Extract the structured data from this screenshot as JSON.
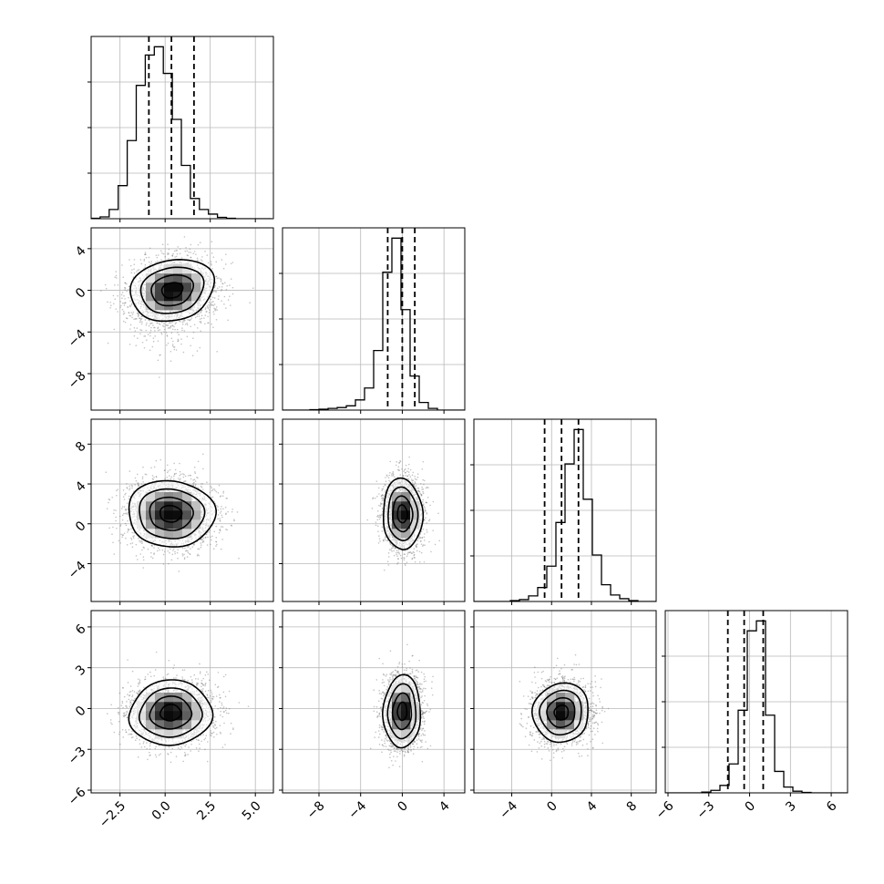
{
  "chart_data": {
    "type": "corner",
    "colors": {
      "ink": "#000000",
      "grid": "#b8b8b8",
      "background": "#ffffff"
    },
    "parameters": [
      {
        "range": [
          -4.1,
          6.0
        ],
        "ticks": [
          -2.5,
          0.0,
          2.5,
          5.0
        ],
        "tick_labels": [
          "−2.5",
          "0.0",
          "2.5",
          "5.0"
        ],
        "quantiles": [
          -0.9,
          0.35,
          1.6
        ]
      },
      {
        "range": [
          -11.5,
          6.0
        ],
        "ticks": [
          -8,
          -4,
          0,
          4
        ],
        "tick_labels": [
          "−8",
          "−4",
          "0",
          "4"
        ],
        "quantiles": [
          -1.4,
          0.0,
          1.2
        ]
      },
      {
        "range": [
          -7.8,
          10.5
        ],
        "ticks": [
          -4,
          0,
          4,
          8
        ],
        "tick_labels": [
          "−4",
          "0",
          "4",
          "8"
        ],
        "quantiles": [
          -0.7,
          1.0,
          2.7
        ]
      },
      {
        "range": [
          -6.2,
          7.2
        ],
        "ticks": [
          -6,
          -3,
          0,
          3,
          6
        ],
        "tick_labels": [
          "−6",
          "−3",
          "0",
          "3",
          "6"
        ],
        "quantiles": [
          -1.6,
          -0.4,
          1.0
        ]
      }
    ],
    "histograms": [
      {
        "param": 0,
        "start": -4.1,
        "bin_width": 0.5,
        "counts": [
          0.5,
          2,
          10,
          36,
          85,
          145,
          178,
          187,
          158,
          108,
          58,
          22,
          10,
          5,
          1.5,
          0.5,
          0,
          0,
          0,
          0
        ]
      },
      {
        "param": 1,
        "start": -11.5,
        "bin_width": 0.875,
        "counts": [
          0,
          0,
          0,
          0.5,
          1,
          2,
          3,
          5,
          12,
          26,
          70,
          162,
          202,
          118,
          40,
          9,
          2,
          0,
          0,
          0
        ]
      },
      {
        "param": 2,
        "start": -7.8,
        "bin_width": 0.915,
        "counts": [
          0,
          0,
          0,
          0,
          1,
          2,
          6,
          15,
          38,
          85,
          148,
          185,
          110,
          50,
          18,
          7,
          3,
          1,
          0,
          0
        ]
      },
      {
        "param": 3,
        "start": -6.2,
        "bin_width": 0.67,
        "counts": [
          0,
          0,
          0,
          0,
          1,
          3,
          9,
          35,
          100,
          196,
          208,
          94,
          26,
          7,
          2,
          0.5,
          0,
          0,
          0,
          0
        ]
      }
    ],
    "pairs": [
      {
        "x": 0,
        "y": 1,
        "center": [
          0.4,
          0.0
        ],
        "sigma": [
          1.15,
          1.55
        ],
        "corr": 0.15,
        "tail_y": -1.6
      },
      {
        "x": 0,
        "y": 2,
        "center": [
          0.3,
          1.0
        ],
        "sigma": [
          1.2,
          1.7
        ],
        "corr": 0.0,
        "tail_y": 0
      },
      {
        "x": 1,
        "y": 2,
        "center": [
          0.0,
          1.0
        ],
        "sigma": [
          0.95,
          1.75
        ],
        "corr": 0.0,
        "tail_y": 0
      },
      {
        "x": 0,
        "y": 3,
        "center": [
          0.3,
          -0.3
        ],
        "sigma": [
          1.15,
          1.15
        ],
        "corr": 0.05,
        "tail_y": 0
      },
      {
        "x": 1,
        "y": 3,
        "center": [
          0.0,
          -0.2
        ],
        "sigma": [
          0.9,
          1.3
        ],
        "corr": 0.0,
        "tail_y": 0
      },
      {
        "x": 2,
        "y": 3,
        "center": [
          1.0,
          -0.3
        ],
        "sigma": [
          1.4,
          1.1
        ],
        "corr": 0.0,
        "tail_y": 0
      }
    ]
  }
}
